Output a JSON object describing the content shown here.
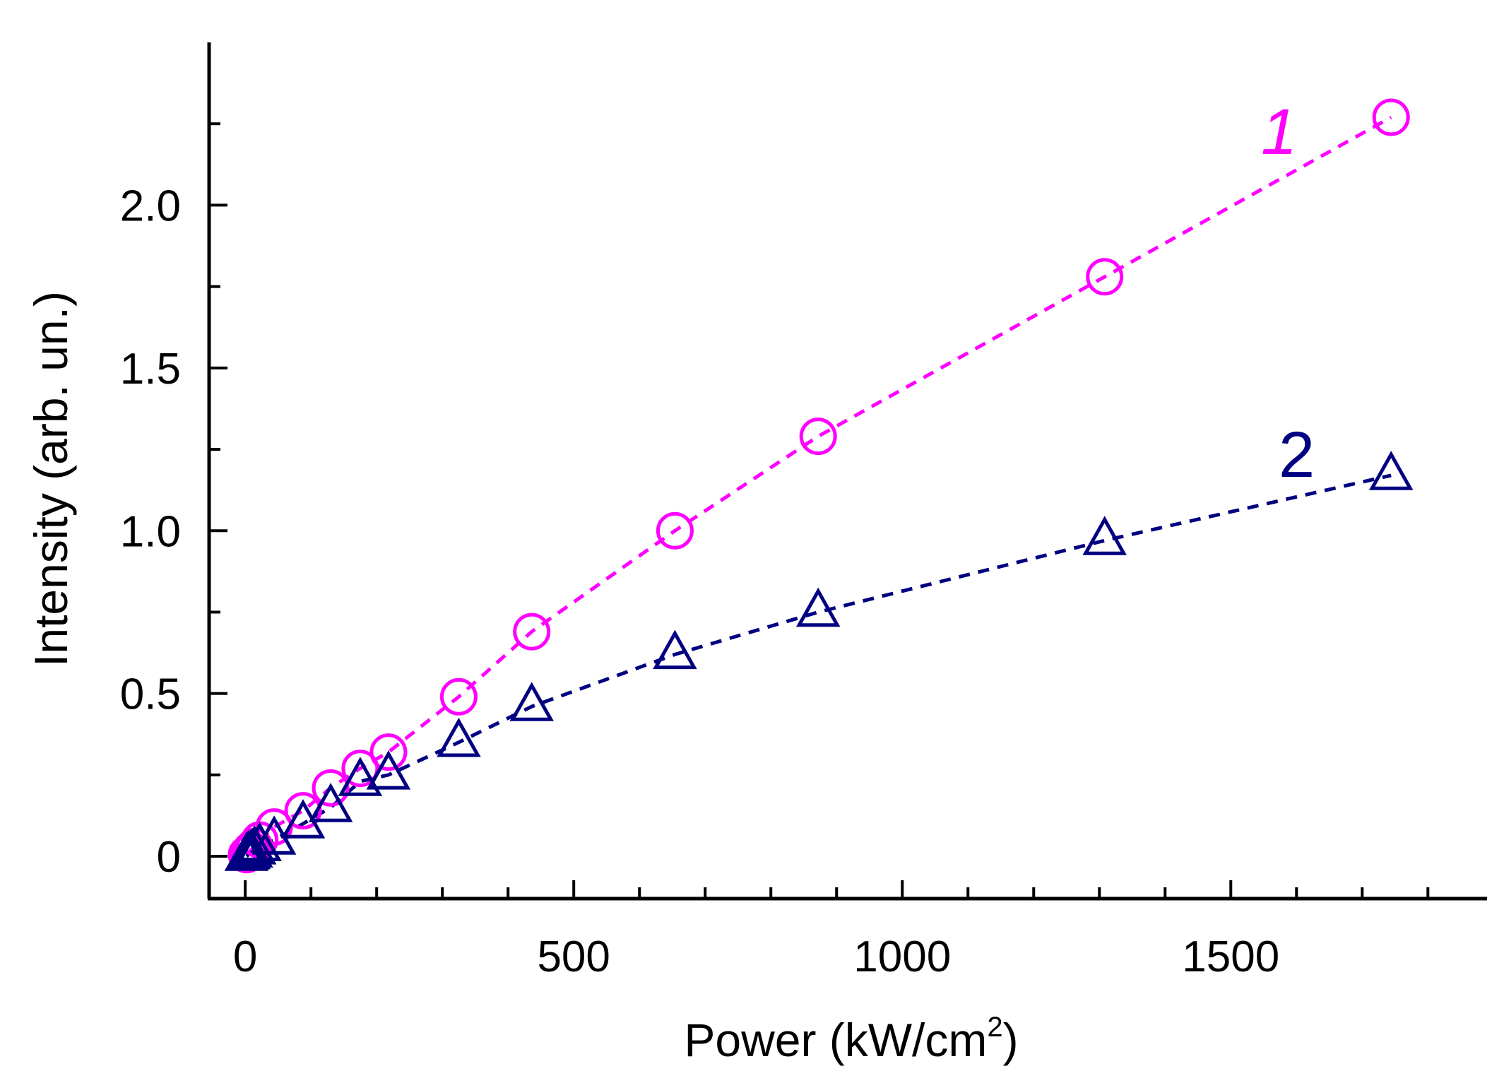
{
  "chart_data": {
    "type": "scatter",
    "xlabel": "Power (kW/cm",
    "xlabel_sup": "2",
    "xlabel_end": ")",
    "ylabel": "Intensity (arb. un.)",
    "xlim": [
      -55,
      1890
    ],
    "ylim": [
      -0.13,
      2.5
    ],
    "x_major_ticks": [
      0,
      500,
      1000,
      1500
    ],
    "x_tick_labels": [
      "0",
      "500",
      "1000",
      "1500"
    ],
    "x_minor_ticks": [
      100,
      200,
      300,
      400,
      600,
      700,
      800,
      900,
      1100,
      1200,
      1300,
      1400,
      1600,
      1700,
      1800
    ],
    "y_major_ticks": [
      0,
      0.5,
      1.0,
      1.5,
      2.0
    ],
    "y_tick_labels": [
      "0",
      "0.5",
      "1.0",
      "1.5",
      "2.0"
    ],
    "y_minor_ticks": [
      0.25,
      0.75,
      1.25,
      1.75,
      2.25
    ],
    "grid": false,
    "series": [
      {
        "name": "1",
        "label": "1",
        "marker": "circle",
        "line": "dashed",
        "color": "#ff00ff",
        "x": [
          2,
          5,
          9,
          14,
          22,
          44,
          88,
          130,
          175,
          218,
          325,
          436,
          654,
          872,
          1308,
          1744
        ],
        "y": [
          0.005,
          0.01,
          0.02,
          0.03,
          0.05,
          0.09,
          0.14,
          0.21,
          0.27,
          0.32,
          0.49,
          0.69,
          1.0,
          1.29,
          1.78,
          2.27
        ]
      },
      {
        "name": "2",
        "label": "2",
        "marker": "triangle",
        "line": "dashed",
        "color": "#000080",
        "x": [
          2,
          5,
          9,
          14,
          22,
          44,
          88,
          130,
          175,
          218,
          325,
          436,
          654,
          872,
          1308,
          1744
        ],
        "y": [
          0.0,
          0.005,
          0.01,
          0.02,
          0.03,
          0.05,
          0.1,
          0.15,
          0.23,
          0.25,
          0.35,
          0.46,
          0.62,
          0.75,
          0.97,
          1.17
        ]
      }
    ]
  }
}
